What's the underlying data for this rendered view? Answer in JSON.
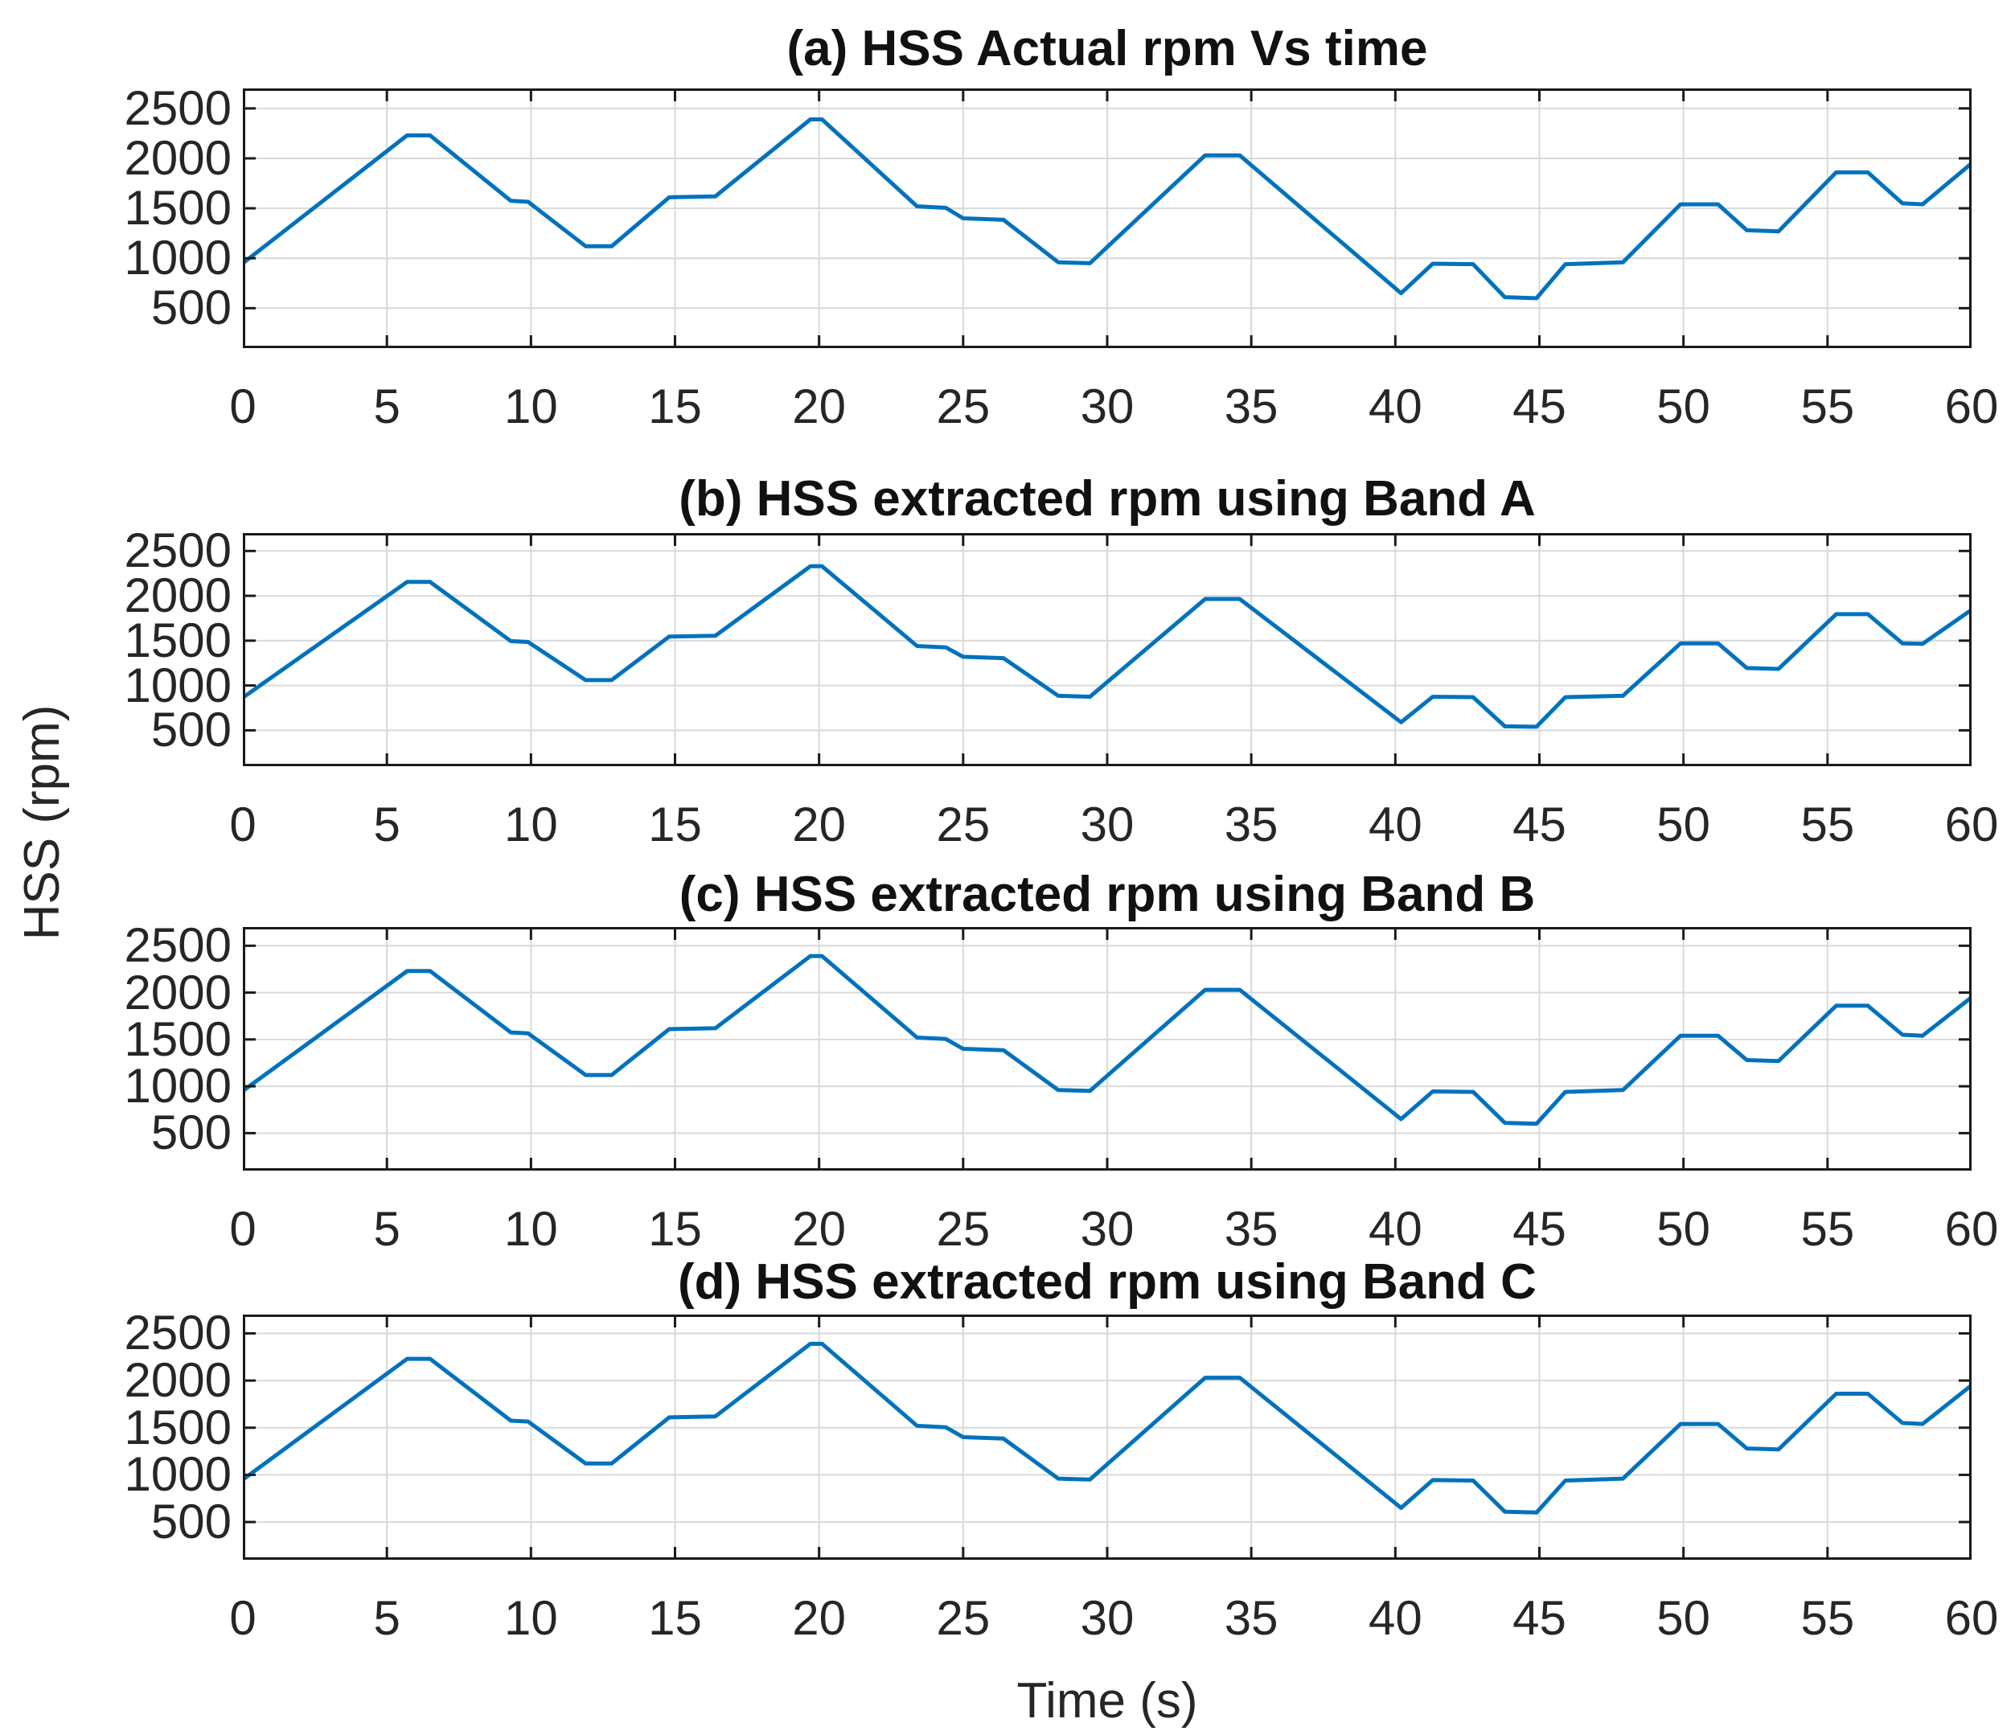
{
  "chart_data": {
    "type": "line",
    "xlabel": "Time (s)",
    "ylabel": "HSS (rpm)",
    "xlim": [
      0,
      60
    ],
    "ylim": [
      100,
      2700
    ],
    "xticks": [
      0,
      5,
      10,
      15,
      20,
      25,
      30,
      35,
      40,
      45,
      50,
      55,
      60
    ],
    "yticks": [
      500,
      1000,
      1500,
      2000,
      2500
    ],
    "grid": true,
    "legend": "none",
    "line_color": "#0072BD",
    "grid_color": "#D9D9D9",
    "axis_color": "#1a1a1a",
    "panels": [
      {
        "id": "a",
        "title": "(a) HSS Actual rpm Vs time",
        "series": [
          [
            0,
            950
          ],
          [
            5.7,
            2230
          ],
          [
            6.5,
            2230
          ],
          [
            9.3,
            1575
          ],
          [
            9.9,
            1565
          ],
          [
            11.9,
            1120
          ],
          [
            12.8,
            1120
          ],
          [
            14.8,
            1610
          ],
          [
            16.4,
            1620
          ],
          [
            19.7,
            2390
          ],
          [
            20.1,
            2390
          ],
          [
            23.4,
            1520
          ],
          [
            24.4,
            1505
          ],
          [
            25.0,
            1400
          ],
          [
            26.4,
            1385
          ],
          [
            28.3,
            960
          ],
          [
            29.4,
            950
          ],
          [
            33.4,
            2030
          ],
          [
            34.6,
            2030
          ],
          [
            40.2,
            650
          ],
          [
            41.3,
            945
          ],
          [
            42.7,
            940
          ],
          [
            43.8,
            610
          ],
          [
            44.9,
            600
          ],
          [
            45.9,
            940
          ],
          [
            47.9,
            960
          ],
          [
            49.9,
            1540
          ],
          [
            51.2,
            1540
          ],
          [
            52.2,
            1280
          ],
          [
            53.3,
            1270
          ],
          [
            55.3,
            1860
          ],
          [
            56.4,
            1860
          ],
          [
            57.6,
            1550
          ],
          [
            58.3,
            1540
          ],
          [
            60,
            1950
          ]
        ]
      },
      {
        "id": "b",
        "title": "(b) HSS extracted rpm using Band A",
        "series": [
          [
            0,
            865
          ],
          [
            5.7,
            2155
          ],
          [
            6.5,
            2155
          ],
          [
            9.3,
            1495
          ],
          [
            9.9,
            1485
          ],
          [
            11.9,
            1060
          ],
          [
            12.8,
            1060
          ],
          [
            14.8,
            1545
          ],
          [
            16.4,
            1555
          ],
          [
            19.7,
            2330
          ],
          [
            20.1,
            2330
          ],
          [
            23.4,
            1440
          ],
          [
            24.4,
            1425
          ],
          [
            25.0,
            1320
          ],
          [
            26.4,
            1305
          ],
          [
            28.3,
            885
          ],
          [
            29.4,
            875
          ],
          [
            33.4,
            1965
          ],
          [
            34.6,
            1965
          ],
          [
            40.2,
            590
          ],
          [
            41.3,
            875
          ],
          [
            42.7,
            870
          ],
          [
            43.8,
            545
          ],
          [
            44.9,
            540
          ],
          [
            45.9,
            870
          ],
          [
            47.9,
            885
          ],
          [
            49.9,
            1470
          ],
          [
            51.2,
            1470
          ],
          [
            52.2,
            1195
          ],
          [
            53.3,
            1185
          ],
          [
            55.3,
            1795
          ],
          [
            56.4,
            1795
          ],
          [
            57.6,
            1470
          ],
          [
            58.3,
            1465
          ],
          [
            60,
            1845
          ]
        ]
      },
      {
        "id": "c",
        "title": "(c) HSS extracted rpm using Band B",
        "series": [
          [
            0,
            950
          ],
          [
            5.7,
            2230
          ],
          [
            6.5,
            2230
          ],
          [
            9.3,
            1575
          ],
          [
            9.9,
            1565
          ],
          [
            11.9,
            1120
          ],
          [
            12.8,
            1120
          ],
          [
            14.8,
            1610
          ],
          [
            16.4,
            1620
          ],
          [
            19.7,
            2390
          ],
          [
            20.1,
            2390
          ],
          [
            23.4,
            1520
          ],
          [
            24.4,
            1505
          ],
          [
            25.0,
            1400
          ],
          [
            26.4,
            1385
          ],
          [
            28.3,
            960
          ],
          [
            29.4,
            950
          ],
          [
            33.4,
            2030
          ],
          [
            34.6,
            2030
          ],
          [
            40.2,
            650
          ],
          [
            41.3,
            945
          ],
          [
            42.7,
            940
          ],
          [
            43.8,
            610
          ],
          [
            44.9,
            600
          ],
          [
            45.9,
            940
          ],
          [
            47.9,
            960
          ],
          [
            49.9,
            1540
          ],
          [
            51.2,
            1540
          ],
          [
            52.2,
            1280
          ],
          [
            53.3,
            1270
          ],
          [
            55.3,
            1860
          ],
          [
            56.4,
            1860
          ],
          [
            57.6,
            1550
          ],
          [
            58.3,
            1540
          ],
          [
            60,
            1950
          ]
        ]
      },
      {
        "id": "d",
        "title": "(d) HSS extracted rpm using Band C",
        "series": [
          [
            0,
            950
          ],
          [
            5.7,
            2230
          ],
          [
            6.5,
            2230
          ],
          [
            9.3,
            1575
          ],
          [
            9.9,
            1565
          ],
          [
            11.9,
            1120
          ],
          [
            12.8,
            1120
          ],
          [
            14.8,
            1610
          ],
          [
            16.4,
            1620
          ],
          [
            19.7,
            2390
          ],
          [
            20.1,
            2390
          ],
          [
            23.4,
            1520
          ],
          [
            24.4,
            1505
          ],
          [
            25.0,
            1400
          ],
          [
            26.4,
            1385
          ],
          [
            28.3,
            960
          ],
          [
            29.4,
            950
          ],
          [
            33.4,
            2030
          ],
          [
            34.6,
            2030
          ],
          [
            40.2,
            650
          ],
          [
            41.3,
            945
          ],
          [
            42.7,
            940
          ],
          [
            43.8,
            610
          ],
          [
            44.9,
            600
          ],
          [
            45.9,
            940
          ],
          [
            47.9,
            960
          ],
          [
            49.9,
            1540
          ],
          [
            51.2,
            1540
          ],
          [
            52.2,
            1280
          ],
          [
            53.3,
            1270
          ],
          [
            55.3,
            1860
          ],
          [
            56.4,
            1860
          ],
          [
            57.6,
            1550
          ],
          [
            58.3,
            1540
          ],
          [
            60,
            1950
          ]
        ]
      }
    ]
  }
}
